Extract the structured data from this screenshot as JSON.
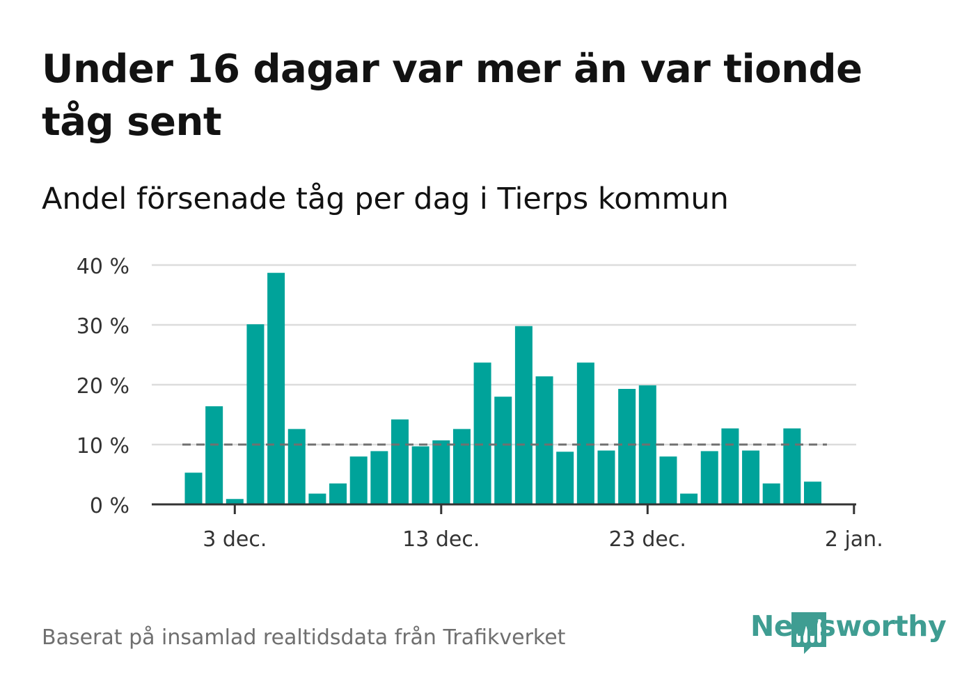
{
  "title": "Under 16 dagar var mer än var tionde tåg sent",
  "subtitle": "Andel försenade tåg per dag i Tierps kommun",
  "footer": "Baserat på insamlad realtidsdata från Trafikverket",
  "brand": "Newsworthy",
  "colors": {
    "bar": "#00a39a",
    "reference_line": "#707070",
    "grid": "#dcdcdc",
    "axis": "#333333"
  },
  "chart_data": {
    "type": "bar",
    "x": [
      "2023-12-01",
      "2023-12-02",
      "2023-12-03",
      "2023-12-04",
      "2023-12-05",
      "2023-12-06",
      "2023-12-07",
      "2023-12-08",
      "2023-12-09",
      "2023-12-10",
      "2023-12-11",
      "2023-12-12",
      "2023-12-13",
      "2023-12-14",
      "2023-12-15",
      "2023-12-16",
      "2023-12-17",
      "2023-12-18",
      "2023-12-19",
      "2023-12-20",
      "2023-12-21",
      "2023-12-22",
      "2023-12-23",
      "2023-12-24",
      "2023-12-25",
      "2023-12-26",
      "2023-12-27",
      "2023-12-28",
      "2023-12-29",
      "2023-12-30",
      "2023-12-31"
    ],
    "values": [
      5.3,
      16.4,
      0.9,
      30.1,
      38.7,
      12.6,
      1.8,
      3.5,
      8.0,
      8.9,
      14.2,
      9.7,
      10.7,
      12.6,
      23.7,
      18.0,
      29.8,
      21.4,
      8.8,
      23.7,
      9.0,
      19.3,
      19.9,
      8.0,
      1.8,
      8.9,
      12.7,
      9.0,
      3.5,
      12.7,
      3.8
    ],
    "reference_line": 10,
    "ylim": [
      0,
      40
    ],
    "yticks": [
      0,
      10,
      20,
      30,
      40
    ],
    "ytick_labels": [
      "0 %",
      "10 %",
      "20 %",
      "30 %",
      "40 %"
    ],
    "xticks": [
      "2023-12-03",
      "2023-12-13",
      "2023-12-23",
      "2024-01-02"
    ],
    "xtick_labels": [
      "3 dec.",
      "13 dec.",
      "23 dec.",
      "2 jan."
    ],
    "grid": true
  }
}
